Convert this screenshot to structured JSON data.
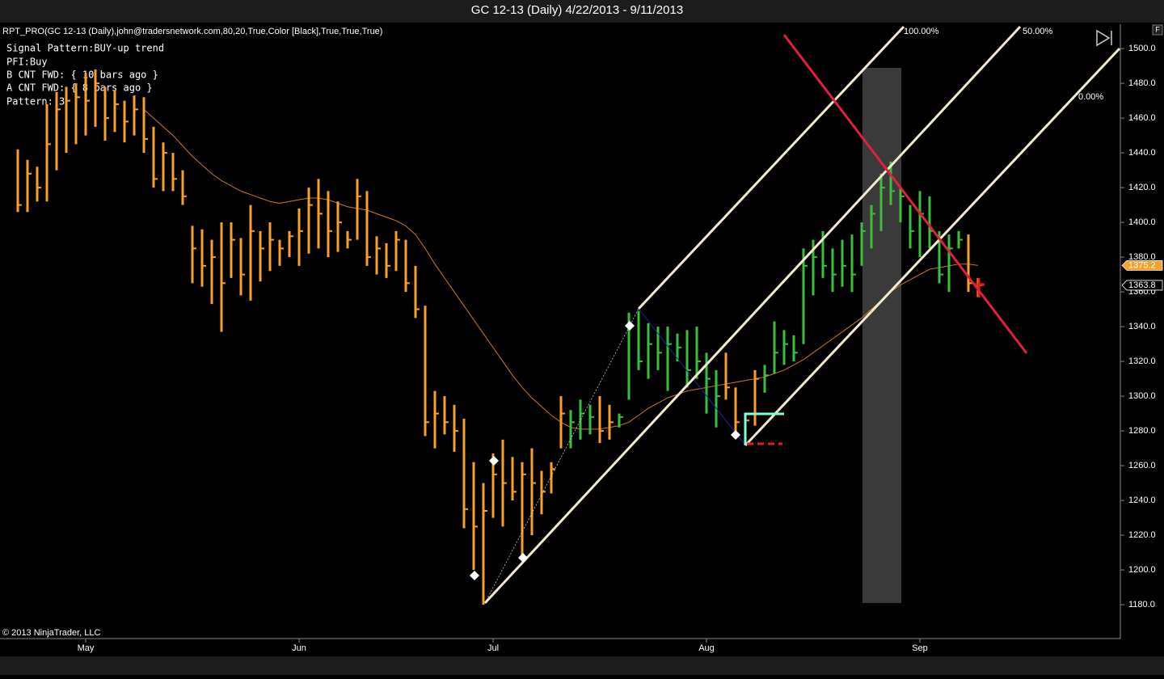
{
  "chart_data": {
    "type": "ohlc",
    "title": "GC 12-13 (Daily)  4/22/2013 - 9/11/2013",
    "subtitle": "RPT_PRO(GC 12-13 (Daily),john@tradersnetwork.com,80,20,True,Color [Black],True,True,True)",
    "info_lines": [
      "Signal Pattern:BUY-up trend",
      "PFI:Buy",
      "B CNT FWD: { 10 bars ago }",
      "A CNT FWD: { 8 bars ago }",
      "Pattern: 3"
    ],
    "copyright": "© 2013 NinjaTrader, LLC",
    "toolbar_button": "F",
    "level_labels": [
      "100.00%",
      "50.00%",
      "0.00%"
    ],
    "categories": [
      null,
      null,
      null,
      null,
      null,
      null,
      null,
      "May",
      null,
      null,
      null,
      null,
      null,
      null,
      null,
      null,
      null,
      null,
      null,
      null,
      null,
      null,
      null,
      null,
      null,
      null,
      null,
      null,
      null,
      "Jun",
      null,
      null,
      null,
      null,
      null,
      null,
      null,
      null,
      null,
      null,
      null,
      null,
      null,
      null,
      null,
      null,
      null,
      null,
      null,
      "Jul",
      null,
      null,
      null,
      null,
      null,
      null,
      null,
      null,
      null,
      null,
      null,
      null,
      null,
      null,
      null,
      null,
      null,
      null,
      null,
      null,
      null,
      "Aug",
      null,
      null,
      null,
      null,
      null,
      null,
      null,
      null,
      null,
      null,
      null,
      null,
      null,
      null,
      null,
      null,
      null,
      null,
      null,
      null,
      null,
      "Sep",
      null,
      null,
      null,
      null,
      null,
      null
    ],
    "high": [
      1442,
      1436,
      1432,
      1468,
      1475,
      1478,
      1480,
      1486,
      1488,
      1478,
      1476,
      1470,
      1473,
      1472,
      1455,
      1446,
      1440,
      1430,
      1398,
      1396,
      1390,
      1400,
      1400,
      1391,
      1410,
      1395,
      1400,
      1390,
      1395,
      1408,
      1420,
      1425,
      1418,
      1412,
      1395,
      1425,
      1418,
      1392,
      1388,
      1395,
      1390,
      1375,
      1352,
      1303,
      1300,
      1295,
      1287,
      1262,
      1250,
      1267,
      1275,
      1265,
      1262,
      1270,
      1257,
      1262,
      1300,
      1292,
      1298,
      1295,
      1300,
      1295,
      1290,
      1348,
      1349,
      1342,
      1340,
      1340,
      1336,
      1338,
      1340,
      1325,
      1315,
      1325,
      1305,
      1290,
      1315,
      1318,
      1343,
      1338,
      1335,
      1385,
      1390,
      1395,
      1385,
      1390,
      1393,
      1400,
      1410,
      1428,
      1435,
      1420,
      1410,
      1418,
      1415,
      1395,
      1393,
      1395,
      1393,
      1368
    ],
    "low": [
      1406,
      1406,
      1412,
      1412,
      1430,
      1440,
      1445,
      1450,
      1455,
      1447,
      1452,
      1446,
      1450,
      1440,
      1420,
      1418,
      1418,
      1410,
      1365,
      1363,
      1353,
      1337,
      1368,
      1358,
      1355,
      1366,
      1372,
      1375,
      1380,
      1375,
      1382,
      1385,
      1380,
      1383,
      1385,
      1390,
      1375,
      1370,
      1368,
      1372,
      1360,
      1345,
      1277,
      1270,
      1278,
      1268,
      1224,
      1200,
      1180,
      1230,
      1225,
      1240,
      1208,
      1220,
      1232,
      1244,
      1270,
      1270,
      1275,
      1278,
      1273,
      1275,
      1282,
      1298,
      1315,
      1310,
      1315,
      1303,
      1320,
      1305,
      1310,
      1290,
      1282,
      1298,
      1280,
      1272,
      1283,
      1302,
      1313,
      1318,
      1320,
      1330,
      1358,
      1368,
      1360,
      1363,
      1360,
      1375,
      1385,
      1395,
      1410,
      1400,
      1385,
      1380,
      1385,
      1365,
      1360,
      1385,
      1360,
      1357
    ],
    "close": [
      1410,
      1428,
      1420,
      1445,
      1465,
      1470,
      1472,
      1470,
      1480,
      1460,
      1468,
      1458,
      1465,
      1448,
      1425,
      1440,
      1425,
      1415,
      1385,
      1375,
      1380,
      1365,
      1390,
      1370,
      1395,
      1385,
      1390,
      1385,
      1392,
      1395,
      1410,
      1405,
      1395,
      1400,
      1390,
      1415,
      1380,
      1385,
      1375,
      1390,
      1365,
      1350,
      1285,
      1290,
      1285,
      1280,
      1235,
      1225,
      1234,
      1255,
      1250,
      1245,
      1255,
      1250,
      1245,
      1258,
      1290,
      1285,
      1290,
      1288,
      1280,
      1285,
      1288,
      1340,
      1320,
      1330,
      1325,
      1330,
      1328,
      1315,
      1320,
      1310,
      1300,
      1305,
      1285,
      1286,
      1310,
      1312,
      1325,
      1330,
      1325,
      1375,
      1380,
      1375,
      1370,
      1375,
      1370,
      1395,
      1405,
      1420,
      1418,
      1415,
      1395,
      1405,
      1395,
      1370,
      1385,
      1390,
      1365,
      1363.8
    ],
    "bar_colors": [
      "#f7a02c",
      "#f7a02c",
      "#f7a02c",
      "#f7a02c",
      "#f7a02c",
      "#f7a02c",
      "#f7a02c",
      "#f7a02c",
      "#f7a02c",
      "#f7a02c",
      "#f7a02c",
      "#f7a02c",
      "#f7a02c",
      "#f7a02c",
      "#f7a02c",
      "#f7a02c",
      "#f7a02c",
      "#f7a02c",
      "#f7a02c",
      "#f7a02c",
      "#f7a02c",
      "#f7a02c",
      "#f7a02c",
      "#f7a02c",
      "#f7a02c",
      "#f7a02c",
      "#f7a02c",
      "#f7a02c",
      "#f7a02c",
      "#f7a02c",
      "#f7a02c",
      "#f7a02c",
      "#f7a02c",
      "#f7a02c",
      "#f7a02c",
      "#f7a02c",
      "#f7a02c",
      "#f7a02c",
      "#f7a02c",
      "#f7a02c",
      "#f7a02c",
      "#f7a02c",
      "#f7a02c",
      "#f7a02c",
      "#f7a02c",
      "#f7a02c",
      "#f7a02c",
      "#f7a02c",
      "#f7a02c",
      "#f7a02c",
      "#f7a02c",
      "#f7a02c",
      "#f7a02c",
      "#f7a02c",
      "#f7a02c",
      "#f7a02c",
      "#f7a02c",
      "#3cbf3c",
      "#3cbf3c",
      "#3cbf3c",
      "#f7a02c",
      "#f7a02c",
      "#3cbf3c",
      "#3cbf3c",
      "#3cbf3c",
      "#3cbf3c",
      "#3cbf3c",
      "#3cbf3c",
      "#3cbf3c",
      "#3cbf3c",
      "#3cbf3c",
      "#3cbf3c",
      "#3cbf3c",
      "#f7a02c",
      "#f7a02c",
      "#f7a02c",
      "#f7a02c",
      "#3cbf3c",
      "#3cbf3c",
      "#3cbf3c",
      "#3cbf3c",
      "#3cbf3c",
      "#3cbf3c",
      "#3cbf3c",
      "#3cbf3c",
      "#3cbf3c",
      "#3cbf3c",
      "#3cbf3c",
      "#3cbf3c",
      "#3cbf3c",
      "#3cbf3c",
      "#3cbf3c",
      "#3cbf3c",
      "#3cbf3c",
      "#3cbf3c",
      "#3cbf3c",
      "#3cbf3c",
      "#3cbf3c",
      "#f7a02c",
      "#f7a02c"
    ],
    "ma": {
      "color": "#d07820",
      "values": [
        null,
        null,
        null,
        null,
        null,
        null,
        null,
        null,
        null,
        null,
        null,
        null,
        null,
        1465,
        1460,
        1455,
        1450,
        1444,
        1438,
        1433,
        1428,
        1424,
        1421,
        1418,
        1416,
        1414,
        1412,
        1411,
        1412,
        1413,
        1414,
        1414,
        1413,
        1411,
        1409,
        1408,
        1407,
        1405,
        1403,
        1401,
        1398,
        1393,
        1385,
        1376,
        1368,
        1360,
        1352,
        1344,
        1336,
        1328,
        1320,
        1312,
        1305,
        1299,
        1294,
        1289,
        1285,
        1282,
        1281,
        1281,
        1281,
        1282,
        1283,
        1285,
        1289,
        1293,
        1296,
        1299,
        1301,
        1303,
        1304,
        1305,
        1306,
        1307,
        1308,
        1309,
        1310,
        1311,
        1313,
        1315,
        1318,
        1321,
        1325,
        1329,
        1333,
        1337,
        1341,
        1345,
        1350,
        1355,
        1360,
        1364,
        1367,
        1370,
        1373,
        1374,
        1375,
        1376,
        1376,
        1375.2
      ]
    },
    "price_markers": [
      {
        "value": 1375.2,
        "color": "#f7a02c"
      },
      {
        "value": 1363.8,
        "color": "#000000"
      }
    ],
    "ylim": [
      1160.5,
      1514
    ],
    "yticks": [
      {
        "value": 1180,
        "label": "1180.0"
      },
      {
        "value": 1200,
        "label": "1200.0"
      },
      {
        "value": 1220,
        "label": "1220.0"
      },
      {
        "value": 1240,
        "label": "1240.0"
      },
      {
        "value": 1260,
        "label": "1260.0"
      },
      {
        "value": 1280,
        "label": "1280.0"
      },
      {
        "value": 1300,
        "label": "1300.0"
      },
      {
        "value": 1320,
        "label": "1320.0"
      },
      {
        "value": 1340,
        "label": "1340.0"
      },
      {
        "value": 1360,
        "label": "1360.0"
      },
      {
        "value": 1380,
        "label": "1380.0"
      },
      {
        "value": 1400,
        "label": "1400.0"
      },
      {
        "value": 1420,
        "label": "1420.0"
      },
      {
        "value": 1440,
        "label": "1440.0"
      },
      {
        "value": 1460,
        "label": "1460.0"
      },
      {
        "value": 1480,
        "label": "1480.0"
      },
      {
        "value": 1500,
        "label": "1500.0"
      }
    ]
  }
}
